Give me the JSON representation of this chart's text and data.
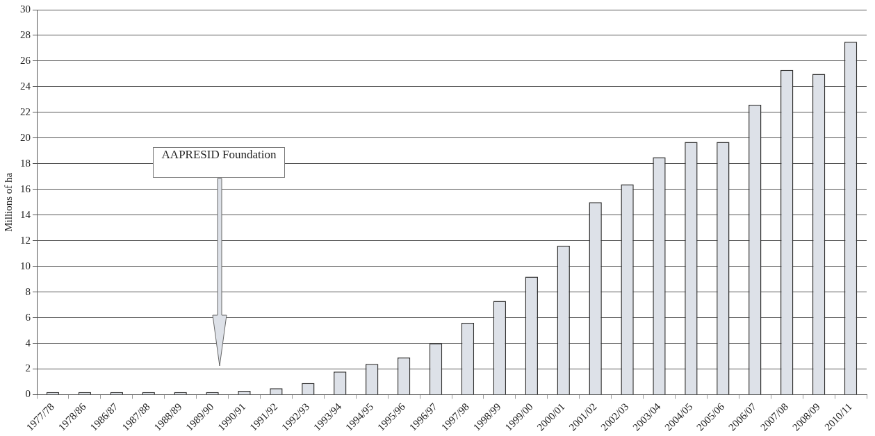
{
  "chart_data": {
    "type": "bar",
    "ylabel": "Millions of ha",
    "categories": [
      "1977/78",
      "1978/86",
      "1986/87",
      "1987/88",
      "1988/89",
      "1989/90",
      "1990/91",
      "1991/92",
      "1992/93",
      "1993/94",
      "1994/95",
      "1995/96",
      "1996/97",
      "1997/98",
      "1998/99",
      "1999/00",
      "2000/01",
      "2001/02",
      "2002/03",
      "2003/04",
      "2004/05",
      "2005/06",
      "2006/07",
      "2007/08",
      "2008/09",
      "2010/11"
    ],
    "values": [
      0.2,
      0.2,
      0.2,
      0.2,
      0.2,
      0.2,
      0.3,
      0.5,
      0.9,
      1.8,
      2.4,
      2.9,
      4.0,
      5.6,
      7.3,
      9.2,
      11.6,
      15.0,
      16.4,
      18.5,
      19.7,
      19.7,
      22.6,
      25.3,
      25.0,
      27.5
    ],
    "color": "#dde1e8",
    "ylim": [
      0,
      30
    ],
    "yticks": [
      0,
      2,
      4,
      6,
      8,
      10,
      12,
      14,
      16,
      18,
      20,
      22,
      24,
      26,
      28,
      30
    ],
    "grid": "y",
    "annotations": [
      "AAPRESID Foundation"
    ]
  }
}
